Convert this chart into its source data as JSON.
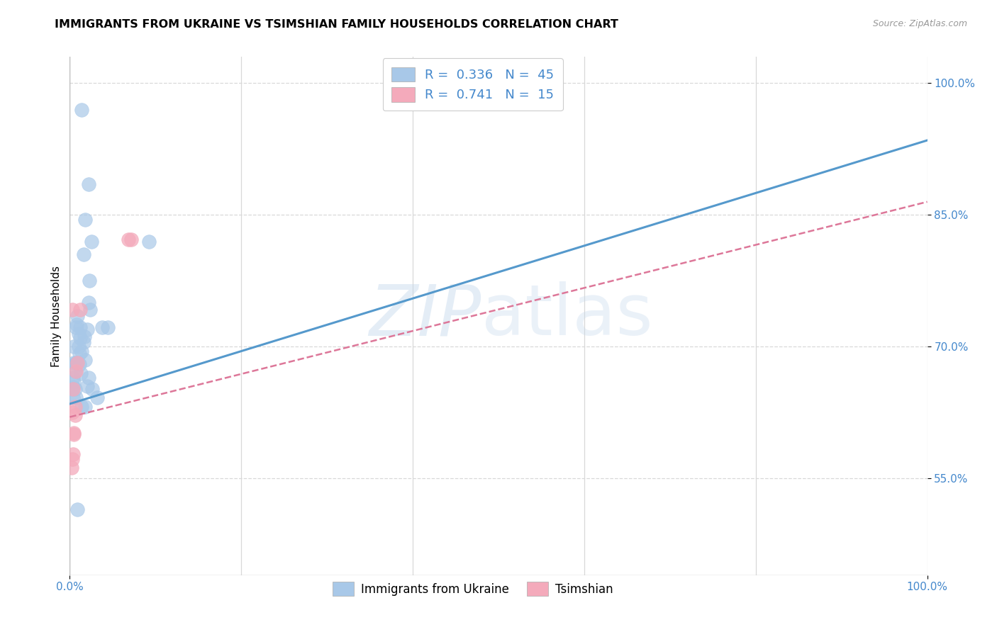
{
  "title": "IMMIGRANTS FROM UKRAINE VS TSIMSHIAN FAMILY HOUSEHOLDS CORRELATION CHART",
  "source": "Source: ZipAtlas.com",
  "ylabel": "Family Households",
  "ytick_labels": [
    "55.0%",
    "70.0%",
    "85.0%",
    "100.0%"
  ],
  "ytick_values": [
    0.55,
    0.7,
    0.85,
    1.0
  ],
  "blue_color": "#a8c8e8",
  "pink_color": "#f4aabb",
  "blue_line_color": "#5599cc",
  "pink_line_color": "#dd7799",
  "text_blue": "#4488cc",
  "blue_scatter_x": [
    0.014,
    0.022,
    0.018,
    0.016,
    0.025,
    0.023,
    0.004,
    0.005,
    0.006,
    0.007,
    0.008,
    0.009,
    0.01,
    0.011,
    0.012,
    0.014,
    0.016,
    0.017,
    0.018,
    0.02,
    0.022,
    0.024,
    0.026,
    0.032,
    0.038,
    0.044,
    0.003,
    0.004,
    0.005,
    0.006,
    0.007,
    0.008,
    0.01,
    0.012,
    0.014,
    0.018,
    0.02,
    0.022,
    0.092,
    0.004,
    0.005,
    0.007,
    0.009,
    0.011,
    0.013
  ],
  "blue_scatter_y": [
    0.97,
    0.885,
    0.845,
    0.805,
    0.82,
    0.775,
    0.654,
    0.66,
    0.672,
    0.682,
    0.725,
    0.735,
    0.7,
    0.692,
    0.71,
    0.695,
    0.705,
    0.712,
    0.685,
    0.72,
    0.75,
    0.742,
    0.652,
    0.642,
    0.722,
    0.722,
    0.652,
    0.642,
    0.682,
    0.652,
    0.642,
    0.682,
    0.715,
    0.722,
    0.632,
    0.632,
    0.655,
    0.665,
    0.82,
    0.665,
    0.7,
    0.722,
    0.515,
    0.68,
    0.67
  ],
  "pink_scatter_x": [
    0.003,
    0.012,
    0.007,
    0.009,
    0.004,
    0.003,
    0.005,
    0.006,
    0.068,
    0.072,
    0.004,
    0.005,
    0.006,
    0.002,
    0.003
  ],
  "pink_scatter_y": [
    0.742,
    0.742,
    0.672,
    0.682,
    0.652,
    0.625,
    0.602,
    0.632,
    0.822,
    0.822,
    0.578,
    0.6,
    0.622,
    0.562,
    0.572
  ],
  "blue_line_x0": 0.0,
  "blue_line_y0": 0.635,
  "blue_line_x1": 1.0,
  "blue_line_y1": 0.935,
  "pink_line_x0": 0.0,
  "pink_line_y0": 0.62,
  "pink_line_x1": 1.0,
  "pink_line_y1": 0.865,
  "xlim": [
    0.0,
    1.0
  ],
  "ylim": [
    0.44,
    1.03
  ],
  "background_color": "#ffffff",
  "grid_color": "#d8d8d8"
}
